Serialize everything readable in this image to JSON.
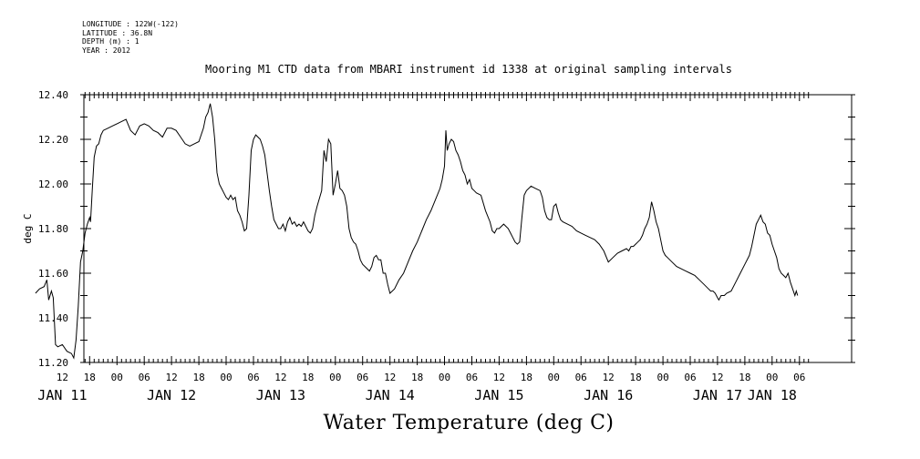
{
  "header": {
    "longitude": "LONGITUDE : 122W(-122)",
    "latitude": "LATITUDE : 36.8N",
    "depth": "DEPTH (m) : 1",
    "year": "YEAR : 2012"
  },
  "chart_data": {
    "type": "line",
    "title": "Mooring M1 CTD data from MBARI instrument id 1338 at original sampling intervals",
    "xlabel": "Water Temperature (deg C)",
    "ylabel": "deg C",
    "xlim": [
      6,
      176
    ],
    "ylim": [
      11.2,
      12.4
    ],
    "y_ticks": [
      "11.20",
      "11.40",
      "11.60",
      "11.80",
      "12.00",
      "12.20",
      "12.40"
    ],
    "x_hour_ticks": [
      {
        "h": 12,
        "label": "12"
      },
      {
        "h": 18,
        "label": "18"
      },
      {
        "h": 24,
        "label": "00"
      },
      {
        "h": 30,
        "label": "06"
      },
      {
        "h": 36,
        "label": "12"
      },
      {
        "h": 42,
        "label": "18"
      },
      {
        "h": 48,
        "label": "00"
      },
      {
        "h": 54,
        "label": "06"
      },
      {
        "h": 60,
        "label": "12"
      },
      {
        "h": 66,
        "label": "18"
      },
      {
        "h": 72,
        "label": "00"
      },
      {
        "h": 78,
        "label": "06"
      },
      {
        "h": 84,
        "label": "12"
      },
      {
        "h": 90,
        "label": "18"
      },
      {
        "h": 96,
        "label": "00"
      },
      {
        "h": 102,
        "label": "06"
      },
      {
        "h": 108,
        "label": "12"
      },
      {
        "h": 114,
        "label": "18"
      },
      {
        "h": 120,
        "label": "00"
      },
      {
        "h": 126,
        "label": "06"
      },
      {
        "h": 132,
        "label": "12"
      },
      {
        "h": 138,
        "label": "18"
      },
      {
        "h": 144,
        "label": "00"
      },
      {
        "h": 150,
        "label": "06"
      },
      {
        "h": 156,
        "label": "12"
      },
      {
        "h": 162,
        "label": "18"
      },
      {
        "h": 168,
        "label": "00"
      },
      {
        "h": 174,
        "label": "06"
      }
    ],
    "x_day_labels": [
      {
        "h": 12,
        "label": "JAN 11"
      },
      {
        "h": 36,
        "label": "JAN 12"
      },
      {
        "h": 60,
        "label": "JAN 13"
      },
      {
        "h": 84,
        "label": "JAN 14"
      },
      {
        "h": 108,
        "label": "JAN 15"
      },
      {
        "h": 132,
        "label": "JAN 16"
      },
      {
        "h": 156,
        "label": "JAN 17"
      },
      {
        "h": 168,
        "label": "JAN 18"
      }
    ],
    "series": [
      {
        "x_unit": "hours since JAN 10 00:00",
        "points": [
          [
            6.1,
            11.51
          ],
          [
            7,
            11.53
          ],
          [
            8,
            11.54
          ],
          [
            8.6,
            11.57
          ],
          [
            9,
            11.48
          ],
          [
            9.6,
            11.52
          ],
          [
            10,
            11.49
          ],
          [
            10.5,
            11.28
          ],
          [
            11,
            11.27
          ],
          [
            12,
            11.28
          ],
          [
            13,
            11.25
          ],
          [
            14,
            11.24
          ],
          [
            14.5,
            11.22
          ],
          [
            15,
            11.3
          ],
          [
            15.5,
            11.45
          ],
          [
            16,
            11.65
          ],
          [
            16.5,
            11.7
          ],
          [
            17,
            11.78
          ],
          [
            17.5,
            11.82
          ],
          [
            18,
            11.85
          ],
          [
            18.2,
            11.83
          ],
          [
            18.6,
            11.98
          ],
          [
            19,
            12.12
          ],
          [
            19.5,
            12.17
          ],
          [
            20,
            12.18
          ],
          [
            20.5,
            12.22
          ],
          [
            21,
            12.24
          ],
          [
            22,
            12.25
          ],
          [
            23,
            12.26
          ],
          [
            24,
            12.27
          ],
          [
            25,
            12.28
          ],
          [
            26,
            12.29
          ],
          [
            27,
            12.24
          ],
          [
            28,
            12.22
          ],
          [
            29,
            12.26
          ],
          [
            30,
            12.27
          ],
          [
            31,
            12.26
          ],
          [
            32,
            12.24
          ],
          [
            33,
            12.23
          ],
          [
            34,
            12.21
          ],
          [
            35,
            12.25
          ],
          [
            36,
            12.25
          ],
          [
            37,
            12.24
          ],
          [
            38,
            12.21
          ],
          [
            39,
            12.18
          ],
          [
            40,
            12.17
          ],
          [
            41,
            12.18
          ],
          [
            42,
            12.19
          ],
          [
            43,
            12.25
          ],
          [
            43.5,
            12.3
          ],
          [
            44,
            12.32
          ],
          [
            44.5,
            12.36
          ],
          [
            45,
            12.3
          ],
          [
            45.5,
            12.2
          ],
          [
            46,
            12.05
          ],
          [
            46.5,
            12.0
          ],
          [
            47,
            11.98
          ],
          [
            47.5,
            11.96
          ],
          [
            48,
            11.94
          ],
          [
            48.5,
            11.93
          ],
          [
            49,
            11.95
          ],
          [
            49.5,
            11.93
          ],
          [
            50,
            11.94
          ],
          [
            50.5,
            11.88
          ],
          [
            51,
            11.86
          ],
          [
            51.5,
            11.83
          ],
          [
            52,
            11.79
          ],
          [
            52.5,
            11.8
          ],
          [
            53,
            11.95
          ],
          [
            53.5,
            12.15
          ],
          [
            54,
            12.2
          ],
          [
            54.5,
            12.22
          ],
          [
            55,
            12.21
          ],
          [
            55.5,
            12.2
          ],
          [
            56,
            12.17
          ],
          [
            56.5,
            12.13
          ],
          [
            57,
            12.05
          ],
          [
            57.5,
            11.97
          ],
          [
            58,
            11.9
          ],
          [
            58.5,
            11.84
          ],
          [
            59,
            11.82
          ],
          [
            59.5,
            11.8
          ],
          [
            60,
            11.8
          ],
          [
            60.5,
            11.82
          ],
          [
            61,
            11.79
          ],
          [
            61.5,
            11.83
          ],
          [
            62,
            11.85
          ],
          [
            62.5,
            11.82
          ],
          [
            63,
            11.83
          ],
          [
            63.5,
            11.81
          ],
          [
            64,
            11.82
          ],
          [
            64.5,
            11.81
          ],
          [
            65,
            11.83
          ],
          [
            65.5,
            11.81
          ],
          [
            66,
            11.79
          ],
          [
            66.5,
            11.78
          ],
          [
            67,
            11.8
          ],
          [
            67.5,
            11.86
          ],
          [
            68,
            11.9
          ],
          [
            69,
            11.97
          ],
          [
            69.5,
            12.15
          ],
          [
            70,
            12.1
          ],
          [
            70.5,
            12.2
          ],
          [
            71,
            12.18
          ],
          [
            71.5,
            11.95
          ],
          [
            72,
            12.0
          ],
          [
            72.5,
            12.06
          ],
          [
            73,
            11.98
          ],
          [
            73.5,
            11.97
          ],
          [
            74,
            11.95
          ],
          [
            74.5,
            11.9
          ],
          [
            75,
            11.8
          ],
          [
            75.5,
            11.76
          ],
          [
            76,
            11.74
          ],
          [
            76.5,
            11.73
          ],
          [
            77,
            11.7
          ],
          [
            77.5,
            11.66
          ],
          [
            78,
            11.64
          ],
          [
            79,
            11.62
          ],
          [
            79.5,
            11.61
          ],
          [
            80,
            11.63
          ],
          [
            80.5,
            11.67
          ],
          [
            81,
            11.68
          ],
          [
            81.5,
            11.66
          ],
          [
            82,
            11.66
          ],
          [
            82.5,
            11.6
          ],
          [
            83,
            11.6
          ],
          [
            83.5,
            11.55
          ],
          [
            84,
            11.51
          ],
          [
            85,
            11.53
          ],
          [
            86,
            11.57
          ],
          [
            87,
            11.6
          ],
          [
            88,
            11.65
          ],
          [
            89,
            11.7
          ],
          [
            90,
            11.74
          ],
          [
            91,
            11.79
          ],
          [
            92,
            11.84
          ],
          [
            93,
            11.88
          ],
          [
            94,
            11.93
          ],
          [
            95,
            11.98
          ],
          [
            95.5,
            12.02
          ],
          [
            96,
            12.08
          ],
          [
            96.3,
            12.24
          ],
          [
            96.6,
            12.15
          ],
          [
            97,
            12.18
          ],
          [
            97.5,
            12.2
          ],
          [
            98,
            12.19
          ],
          [
            98.5,
            12.15
          ],
          [
            99,
            12.13
          ],
          [
            99.5,
            12.1
          ],
          [
            100,
            12.06
          ],
          [
            100.5,
            12.04
          ],
          [
            101,
            12.0
          ],
          [
            101.5,
            12.02
          ],
          [
            102,
            11.98
          ],
          [
            102.5,
            11.97
          ],
          [
            103,
            11.96
          ],
          [
            104,
            11.95
          ],
          [
            105,
            11.88
          ],
          [
            106,
            11.83
          ],
          [
            106.5,
            11.79
          ],
          [
            107,
            11.78
          ],
          [
            107.5,
            11.8
          ],
          [
            108,
            11.8
          ],
          [
            108.5,
            11.81
          ],
          [
            109,
            11.82
          ],
          [
            110,
            11.8
          ],
          [
            110.5,
            11.78
          ],
          [
            111,
            11.76
          ],
          [
            111.5,
            11.74
          ],
          [
            112,
            11.73
          ],
          [
            112.5,
            11.74
          ],
          [
            113,
            11.85
          ],
          [
            113.5,
            11.95
          ],
          [
            114,
            11.97
          ],
          [
            114.5,
            11.98
          ],
          [
            115,
            11.99
          ],
          [
            116,
            11.98
          ],
          [
            117,
            11.97
          ],
          [
            117.5,
            11.94
          ],
          [
            118,
            11.88
          ],
          [
            118.5,
            11.85
          ],
          [
            119,
            11.84
          ],
          [
            119.5,
            11.84
          ],
          [
            120,
            11.9
          ],
          [
            120.5,
            11.91
          ],
          [
            121,
            11.87
          ],
          [
            121.5,
            11.84
          ],
          [
            122,
            11.83
          ],
          [
            123,
            11.82
          ],
          [
            124,
            11.81
          ],
          [
            125,
            11.79
          ],
          [
            126,
            11.78
          ],
          [
            127,
            11.77
          ],
          [
            128,
            11.76
          ],
          [
            129,
            11.75
          ],
          [
            130,
            11.73
          ],
          [
            131,
            11.7
          ],
          [
            132,
            11.65
          ],
          [
            133,
            11.67
          ],
          [
            134,
            11.69
          ],
          [
            135,
            11.7
          ],
          [
            136,
            11.71
          ],
          [
            136.5,
            11.7
          ],
          [
            137,
            11.72
          ],
          [
            137.5,
            11.72
          ],
          [
            138,
            11.73
          ],
          [
            138.5,
            11.74
          ],
          [
            139,
            11.75
          ],
          [
            139.5,
            11.77
          ],
          [
            140,
            11.8
          ],
          [
            140.5,
            11.82
          ],
          [
            141,
            11.85
          ],
          [
            141.5,
            11.92
          ],
          [
            142,
            11.88
          ],
          [
            142.5,
            11.83
          ],
          [
            143,
            11.8
          ],
          [
            143.5,
            11.75
          ],
          [
            144,
            11.7
          ],
          [
            144.5,
            11.68
          ],
          [
            145,
            11.67
          ],
          [
            146,
            11.65
          ],
          [
            147,
            11.63
          ],
          [
            148,
            11.62
          ],
          [
            149,
            11.61
          ],
          [
            150,
            11.6
          ],
          [
            151,
            11.59
          ],
          [
            152,
            11.57
          ],
          [
            153,
            11.55
          ],
          [
            154,
            11.53
          ],
          [
            154.5,
            11.52
          ],
          [
            155,
            11.52
          ],
          [
            155.5,
            11.51
          ],
          [
            156,
            11.49
          ],
          [
            156.3,
            11.48
          ],
          [
            156.8,
            11.5
          ],
          [
            157.5,
            11.5
          ],
          [
            158,
            11.51
          ],
          [
            159,
            11.52
          ],
          [
            160,
            11.56
          ],
          [
            161,
            11.6
          ],
          [
            162,
            11.64
          ],
          [
            163,
            11.68
          ],
          [
            163.5,
            11.72
          ],
          [
            164,
            11.77
          ],
          [
            164.5,
            11.82
          ],
          [
            165,
            11.84
          ],
          [
            165.5,
            11.86
          ],
          [
            166,
            11.83
          ],
          [
            166.5,
            11.82
          ],
          [
            167,
            11.78
          ],
          [
            167.5,
            11.77
          ],
          [
            168,
            11.73
          ],
          [
            168.5,
            11.7
          ],
          [
            169,
            11.67
          ],
          [
            169.5,
            11.62
          ],
          [
            170,
            11.6
          ],
          [
            170.5,
            11.59
          ],
          [
            171,
            11.58
          ],
          [
            171.5,
            11.6
          ],
          [
            172,
            11.56
          ],
          [
            172.5,
            11.53
          ],
          [
            173,
            11.5
          ],
          [
            173.3,
            11.52
          ],
          [
            173.6,
            11.5
          ]
        ]
      }
    ]
  }
}
